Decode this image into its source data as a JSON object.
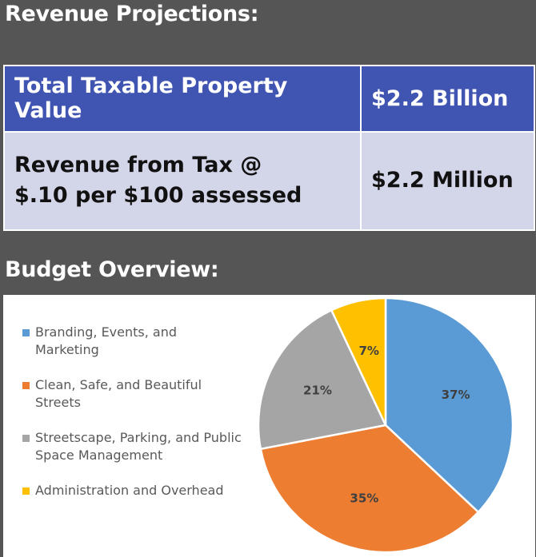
{
  "headings": {
    "revenue": "Revenue Projections:",
    "budget": "Budget Overview:"
  },
  "table": {
    "rows": [
      {
        "label": "Total Taxable Property Value",
        "value": "$2.2 Billion"
      },
      {
        "label_line1": "Revenue from Tax @",
        "label_line2": "$.10 per $100 assessed",
        "value": "$2.2 Million"
      }
    ]
  },
  "chart_data": {
    "type": "pie",
    "categories": [
      "Branding, Events, and Marketing",
      "Clean, Safe, and Beautiful Streets",
      "Streetscape, Parking, and Public Space Management",
      "Administration and Overhead"
    ],
    "values": [
      37,
      35,
      21,
      7
    ],
    "labels": [
      "37%",
      "35%",
      "21%",
      "7%"
    ],
    "colors": [
      "#5b9bd5",
      "#ed7d31",
      "#a5a5a5",
      "#ffc000"
    ],
    "legend_lines": [
      [
        "Branding, Events, and",
        "Marketing"
      ],
      [
        "Clean, Safe, and Beautiful",
        "Streets"
      ],
      [
        "Streetscape, Parking, and Public",
        "Space Management"
      ],
      [
        "Administration and Overhead"
      ]
    ],
    "legend_position": "left",
    "start_angle_deg": 0,
    "direction": "clockwise"
  }
}
